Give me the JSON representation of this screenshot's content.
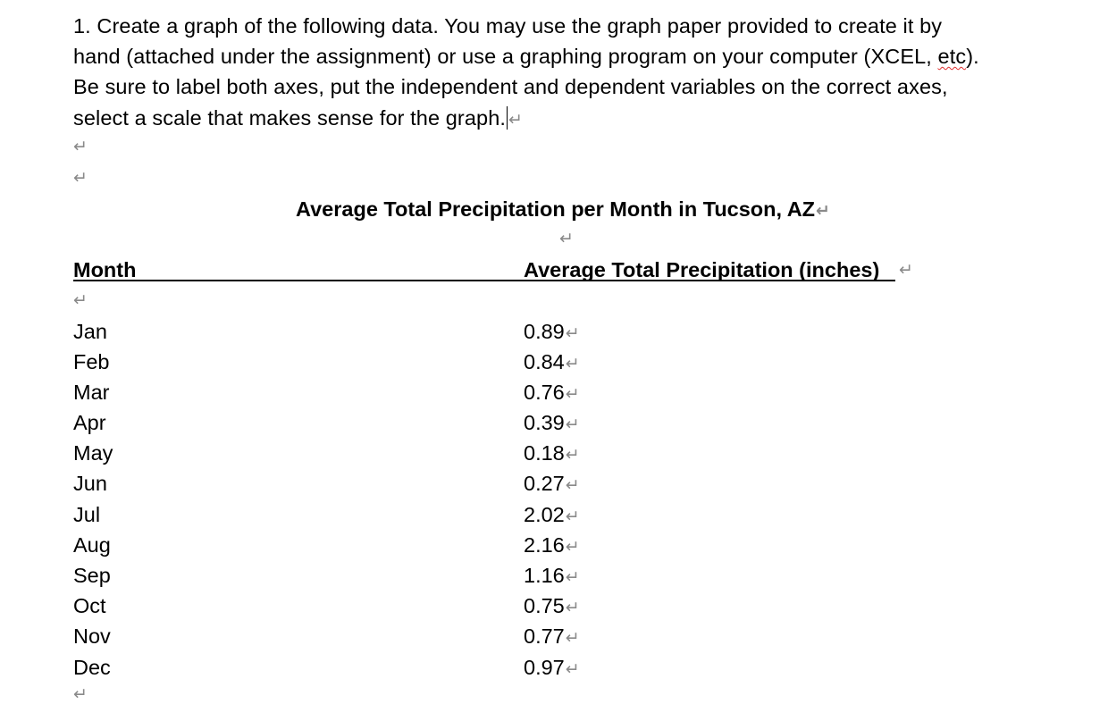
{
  "instructions": {
    "line1": "1. Create a graph of the following data. You may use the graph paper provided to create it by",
    "line2_a": "hand (attached under the assignment) or use a graphing program on your computer (XCEL, ",
    "line2_b": "etc",
    "line2_c": ").",
    "line3": "Be sure to label both axes, put the independent and dependent variables on the correct axes,",
    "line4": "select a scale that makes sense for the graph."
  },
  "paragraph_mark": "↵",
  "table": {
    "title": "Average Total Precipitation per Month in Tucson, AZ",
    "headers": {
      "month": "Month",
      "value": "Average Total Precipitation (inches)"
    },
    "rows": [
      {
        "month": "Jan",
        "value": "0.89"
      },
      {
        "month": "Feb",
        "value": "0.84"
      },
      {
        "month": "Mar",
        "value": "0.76"
      },
      {
        "month": "Apr",
        "value": "0.39"
      },
      {
        "month": "May",
        "value": "0.18"
      },
      {
        "month": "Jun",
        "value": "0.27"
      },
      {
        "month": "Jul",
        "value": "2.02"
      },
      {
        "month": "Aug",
        "value": "2.16"
      },
      {
        "month": "Sep",
        "value": "1.16"
      },
      {
        "month": "Oct",
        "value": "0.75"
      },
      {
        "month": "Nov",
        "value": "0.77"
      },
      {
        "month": "Dec",
        "value": "0.97"
      }
    ]
  }
}
